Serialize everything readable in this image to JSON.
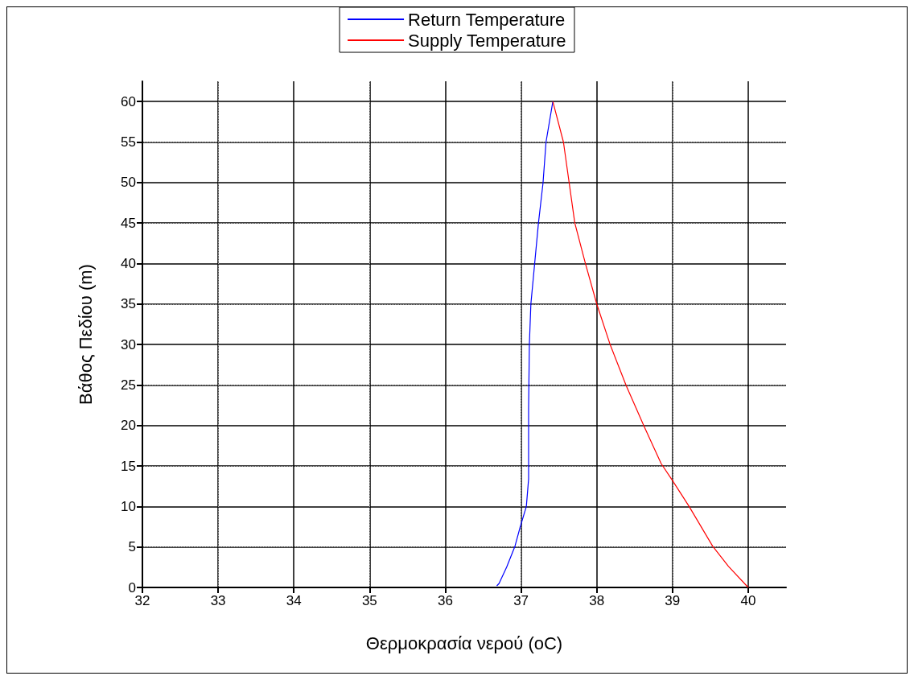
{
  "chart_data": {
    "type": "line",
    "xlabel": "Θερμοκρασία νερού (oC)",
    "ylabel": "Βάθος Πεδίου (m)",
    "xlim": [
      32,
      40.5
    ],
    "xticks": [
      32,
      33,
      34,
      35,
      36,
      37,
      38,
      39,
      40
    ],
    "ylim": [
      0,
      62.5
    ],
    "yticks": [
      0,
      5,
      10,
      15,
      20,
      25,
      30,
      35,
      40,
      45,
      50,
      55,
      60
    ],
    "grid": true,
    "legend": "top",
    "marker": "none",
    "line_style": "solid",
    "series": [
      {
        "name": "Return Temperature",
        "color": "#0000ff",
        "x": [
          36.68,
          36.71,
          36.81,
          36.92,
          36.99,
          37.07,
          37.1,
          37.1,
          37.11,
          37.13,
          37.18,
          37.23,
          37.29,
          37.33,
          37.42
        ],
        "values": [
          0.2,
          0.5,
          2.5,
          5.1,
          7.5,
          10,
          13.4,
          22.1,
          30,
          35,
          40,
          45,
          49.9,
          55,
          60
        ]
      },
      {
        "name": "Supply Temperature",
        "color": "#ff0000",
        "x": [
          40,
          39.74,
          39.53,
          39.22,
          39.0,
          38.85,
          38.62,
          38.39,
          38.18,
          38.0,
          37.85,
          37.71,
          37.56,
          37.42
        ],
        "values": [
          0,
          2.6,
          5.1,
          10,
          13.2,
          15.3,
          20,
          24.9,
          29.9,
          35,
          40,
          45,
          55,
          60
        ]
      }
    ]
  }
}
